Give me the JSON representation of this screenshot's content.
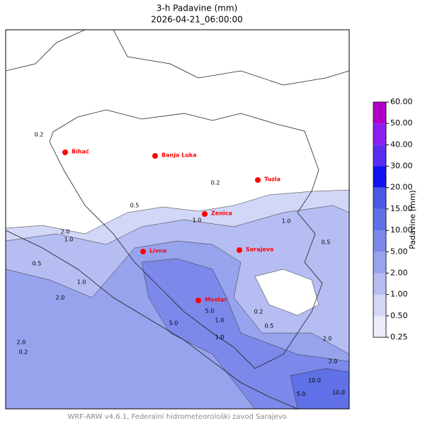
{
  "header": {
    "title": "3-h Padavine (mm)",
    "subtitle": "2026-04-21_06:00:00"
  },
  "cities": [
    "Bihać",
    "Banja Luka",
    "Tuzla",
    "Zenica",
    "Livno",
    "Sarajevo",
    "Mostar"
  ],
  "contour_labels": [
    "0.2",
    "0.2",
    "0.5",
    "1.0",
    "0.5",
    "1.0",
    "2.0",
    "1.0",
    "0.5",
    "1.0",
    "2.0",
    "5.0",
    "1.0",
    "2.0",
    "5.0",
    "0.2",
    "0.5",
    "2.0",
    "10.0",
    "5.0",
    "10.0",
    "0.2",
    "2.0",
    "1.0"
  ],
  "colorbar": {
    "label": "Padavine (mm)",
    "ticks": [
      {
        "value": 0.25,
        "label": "0.25"
      },
      {
        "value": 0.5,
        "label": "0.50"
      },
      {
        "value": 1,
        "label": "1.00"
      },
      {
        "value": 2,
        "label": "2.00"
      },
      {
        "value": 5,
        "label": "5.00"
      },
      {
        "value": 10,
        "label": "10.00"
      },
      {
        "value": 15,
        "label": "15.00"
      },
      {
        "value": 20,
        "label": "20.00"
      },
      {
        "value": 30,
        "label": "30.00"
      },
      {
        "value": 40,
        "label": "40.00"
      },
      {
        "value": 50,
        "label": "50.00"
      },
      {
        "value": 60,
        "label": "60.00"
      }
    ],
    "colors": [
      "#ebebfb",
      "#d2d6f7",
      "#b5bdf2",
      "#98a3ee",
      "#7c89ea",
      "#6070e6",
      "#4a5ae4",
      "#1212ee",
      "#5a2cf0",
      "#8c1ef0",
      "#b000c8"
    ]
  },
  "footer": "WRF-ARW v4.6.1, Federalni hidrometeorološki zavod Sarajevo"
}
